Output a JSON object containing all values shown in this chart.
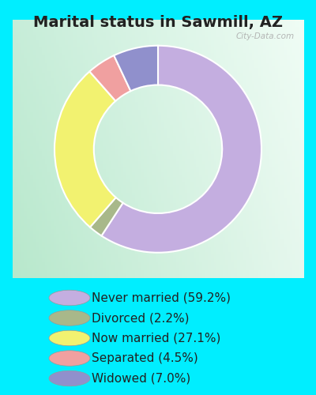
{
  "title": "Marital status in Sawmill, AZ",
  "slices": [
    {
      "label": "Never married (59.2%)",
      "value": 59.2,
      "color": "#c4aee0"
    },
    {
      "label": "Divorced (2.2%)",
      "value": 2.2,
      "color": "#a8b88a"
    },
    {
      "label": "Now married (27.1%)",
      "value": 27.1,
      "color": "#f2f270"
    },
    {
      "label": "Separated (4.5%)",
      "value": 4.5,
      "color": "#f0a0a0"
    },
    {
      "label": "Widowed (7.0%)",
      "value": 7.0,
      "color": "#9090cc"
    }
  ],
  "bg_cyan": "#00eeff",
  "bg_chart_topleft": "#c8ecd8",
  "bg_chart_bottomleft": "#b8e8c8",
  "bg_chart_center": "#e8f8ee",
  "bg_chart_topright": "#f0faf4",
  "title_color": "#222222",
  "title_fontsize": 14,
  "watermark": "City-Data.com",
  "legend_fontsize": 11,
  "start_angle": 90,
  "donut_width": 0.38
}
